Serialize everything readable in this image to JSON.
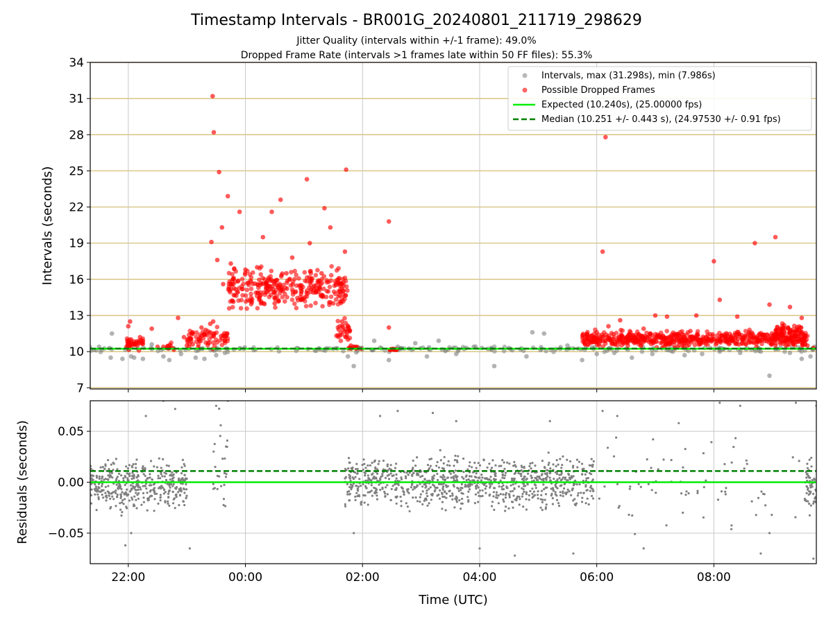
{
  "figure": {
    "title": "Timestamp Intervals - BR001G_20240801_211719_298629",
    "subtitle_1": "Jitter Quality (intervals within +/-1 frame): 49.0%",
    "subtitle_2": "Dropped Frame Rate (intervals >1 frames late within 50 FF files): 55.3%"
  },
  "chart_data": [
    {
      "type": "scatter",
      "title": "Timestamp Intervals - BR001G_20240801_211719_298629",
      "xlabel": "",
      "ylabel": "Intervals (seconds)",
      "x_unit": "hours since 00:00 UTC (negative = previous day)",
      "xlim": [
        -2.65,
        9.75
      ],
      "ylim": [
        6.9,
        34
      ],
      "yticks": [
        7,
        10,
        13,
        16,
        19,
        22,
        25,
        28,
        31,
        34
      ],
      "yticklabels": [
        "7",
        "10",
        "13",
        "16",
        "19",
        "22",
        "25",
        "28",
        "31",
        "34"
      ],
      "xticks": [
        -2,
        0,
        2,
        4,
        6,
        8
      ],
      "xticklabels": [
        "22:00",
        "00:00",
        "02:00",
        "04:00",
        "06:00",
        "08:00"
      ],
      "grid": true,
      "legend_position": "top-right",
      "legend": [
        "Intervals, max (31.298s), min (7.986s)",
        "Possible Dropped Frames",
        "Expected (10.240s), (25.00000 fps)",
        "Median (10.251 +/- 0.443 s), (24.97530 +/- 0.91 fps)"
      ],
      "expected_interval": 10.24,
      "median_interval": 10.251,
      "max_interval": 31.298,
      "min_interval": 7.986,
      "series": [
        {
          "name": "Intervals, max (31.298s), min (7.986s)",
          "color": "#808080",
          "points": [
            [
              -2.7,
              10.3
            ],
            [
              -2.66,
              10.4
            ],
            [
              -2.5,
              10.4
            ],
            [
              -2.32,
              10.3
            ],
            [
              -2.28,
              11.5
            ],
            [
              -2.3,
              9.5
            ],
            [
              -2.1,
              9.4
            ],
            [
              -1.9,
              9.5
            ],
            [
              -1.95,
              9.6
            ],
            [
              -1.75,
              9.4
            ],
            [
              -1.6,
              10.6
            ],
            [
              -1.4,
              9.6
            ],
            [
              -1.3,
              9.3
            ],
            [
              -1.1,
              9.8
            ],
            [
              -0.85,
              9.5
            ],
            [
              -0.7,
              9.4
            ],
            [
              -0.5,
              9.7
            ],
            [
              -0.35,
              9.9
            ],
            [
              1.75,
              9.6
            ],
            [
              1.85,
              8.8
            ],
            [
              1.95,
              10.3
            ],
            [
              2.2,
              10.9
            ],
            [
              2.45,
              9.3
            ],
            [
              2.6,
              10.4
            ],
            [
              2.9,
              10.7
            ],
            [
              3.1,
              9.6
            ],
            [
              3.3,
              10.9
            ],
            [
              3.6,
              9.8
            ],
            [
              3.9,
              10.4
            ],
            [
              4.2,
              10.3
            ],
            [
              4.25,
              8.8
            ],
            [
              4.5,
              10.3
            ],
            [
              4.8,
              9.6
            ],
            [
              4.9,
              11.6
            ],
            [
              5.1,
              11.5
            ],
            [
              5.3,
              10.2
            ],
            [
              5.5,
              10.5
            ],
            [
              5.75,
              9.3
            ],
            [
              6.0,
              9.8
            ],
            [
              6.3,
              9.9
            ],
            [
              6.6,
              9.5
            ],
            [
              6.95,
              9.8
            ],
            [
              7.3,
              10.0
            ],
            [
              7.5,
              9.7
            ],
            [
              7.8,
              9.8
            ],
            [
              8.1,
              10.0
            ],
            [
              8.45,
              9.9
            ],
            [
              8.8,
              10.0
            ],
            [
              8.95,
              8.0
            ],
            [
              9.1,
              10.2
            ],
            [
              9.3,
              9.9
            ],
            [
              9.5,
              9.4
            ],
            [
              9.65,
              9.6
            ],
            [
              9.72,
              10.4
            ]
          ]
        },
        {
          "name": "Possible Dropped Frames",
          "color": "#ff0000",
          "note": "representative visible points",
          "points": [
            [
              -2.0,
              12.1
            ],
            [
              -1.97,
              12.5
            ],
            [
              -1.95,
              11.0
            ],
            [
              -1.9,
              10.6
            ],
            [
              -1.8,
              11.2
            ],
            [
              -1.6,
              11.9
            ],
            [
              -1.5,
              10.4
            ],
            [
              -1.4,
              10.4
            ],
            [
              -1.3,
              10.3
            ],
            [
              -1.15,
              12.8
            ],
            [
              -1.05,
              11.2
            ],
            [
              -1.0,
              10.5
            ],
            [
              -0.92,
              11.5
            ],
            [
              -0.9,
              10.6
            ],
            [
              -0.75,
              12.0
            ],
            [
              -0.7,
              11.4
            ],
            [
              -0.68,
              11.8
            ],
            [
              -0.6,
              12.3
            ],
            [
              -0.55,
              12.5
            ],
            [
              -0.58,
              19.1
            ],
            [
              -0.56,
              31.2
            ],
            [
              -0.54,
              28.2
            ],
            [
              -0.45,
              24.9
            ],
            [
              -0.48,
              17.6
            ],
            [
              -0.4,
              20.3
            ],
            [
              -0.38,
              15.6
            ],
            [
              -0.3,
              22.9
            ],
            [
              -0.25,
              17.3
            ],
            [
              -0.1,
              21.6
            ],
            [
              -0.35,
              10.9
            ],
            [
              0.0,
              16.8
            ],
            [
              0.1,
              14.2
            ],
            [
              0.2,
              17.0
            ],
            [
              0.3,
              19.5
            ],
            [
              0.35,
              15.3
            ],
            [
              0.45,
              21.6
            ],
            [
              0.5,
              14.0
            ],
            [
              0.6,
              22.6
            ],
            [
              0.7,
              16.5
            ],
            [
              0.8,
              17.8
            ],
            [
              0.95,
              14.3
            ],
            [
              1.05,
              24.3
            ],
            [
              1.1,
              19.0
            ],
            [
              1.2,
              15.5
            ],
            [
              1.3,
              16.5
            ],
            [
              1.35,
              21.9
            ],
            [
              1.45,
              20.3
            ],
            [
              1.5,
              14.0
            ],
            [
              1.6,
              16.1
            ],
            [
              1.65,
              12.5
            ],
            [
              1.7,
              18.3
            ],
            [
              1.72,
              25.1
            ],
            [
              1.75,
              11.0
            ],
            [
              1.8,
              10.5
            ],
            [
              2.45,
              20.8
            ],
            [
              2.45,
              12.0
            ],
            [
              2.5,
              10.2
            ],
            [
              5.8,
              10.6
            ],
            [
              6.0,
              11.6
            ],
            [
              6.1,
              18.3
            ],
            [
              6.15,
              27.8
            ],
            [
              6.2,
              12.1
            ],
            [
              6.4,
              12.6
            ],
            [
              6.6,
              11.1
            ],
            [
              6.8,
              11.9
            ],
            [
              7.0,
              13.0
            ],
            [
              7.1,
              11.2
            ],
            [
              7.2,
              12.9
            ],
            [
              7.4,
              11.4
            ],
            [
              7.6,
              11.7
            ],
            [
              7.7,
              13.0
            ],
            [
              7.9,
              11.0
            ],
            [
              8.0,
              17.5
            ],
            [
              8.1,
              14.3
            ],
            [
              8.3,
              11.1
            ],
            [
              8.4,
              12.9
            ],
            [
              8.6,
              11.6
            ],
            [
              8.7,
              19.0
            ],
            [
              8.85,
              11.4
            ],
            [
              8.95,
              13.9
            ],
            [
              9.05,
              19.5
            ],
            [
              9.2,
              12.2
            ],
            [
              9.3,
              13.7
            ],
            [
              9.4,
              11.0
            ],
            [
              9.5,
              12.8
            ],
            [
              9.6,
              10.5
            ],
            [
              9.7,
              10.3
            ]
          ]
        },
        {
          "name": "Expected (10.240s), (25.00000 fps)",
          "color": "#00ee00",
          "style": "solid",
          "y": 10.24
        },
        {
          "name": "Median (10.251 +/- 0.443 s), (24.97530 +/- 0.91 fps)",
          "color": "#008000",
          "style": "dashed",
          "y": 10.251
        }
      ],
      "clusters": [
        {
          "color": "#808080",
          "x_range": [
            -2.7,
            9.75
          ],
          "y_range": [
            9.9,
            10.5
          ],
          "count": 200
        },
        {
          "color": "#ff0000",
          "x_range": [
            -2.05,
            -1.75
          ],
          "y_range": [
            10.0,
            11.3
          ],
          "count": 40
        },
        {
          "color": "#ff0000",
          "x_range": [
            -1.35,
            -1.2
          ],
          "y_range": [
            10.0,
            10.8
          ],
          "count": 12
        },
        {
          "color": "#ff0000",
          "x_range": [
            -1.0,
            -0.3
          ],
          "y_range": [
            10.0,
            12.2
          ],
          "count": 70
        },
        {
          "color": "#ff0000",
          "x_range": [
            -0.3,
            1.75
          ],
          "y_range": [
            13.0,
            17.5
          ],
          "count": 320
        },
        {
          "color": "#ff0000",
          "x_range": [
            1.55,
            1.8
          ],
          "y_range": [
            10.4,
            13.0
          ],
          "count": 30
        },
        {
          "color": "#ff0000",
          "x_range": [
            1.75,
            2.0
          ],
          "y_range": [
            10.1,
            10.5
          ],
          "count": 14
        },
        {
          "color": "#ff0000",
          "x_range": [
            2.45,
            2.6
          ],
          "y_range": [
            10.1,
            10.3
          ],
          "count": 10
        },
        {
          "color": "#ff0000",
          "x_range": [
            5.75,
            9.6
          ],
          "y_range": [
            10.2,
            11.9
          ],
          "count": 620
        },
        {
          "color": "#ff0000",
          "x_range": [
            9.05,
            9.5
          ],
          "y_range": [
            10.8,
            12.5
          ],
          "count": 60
        }
      ]
    },
    {
      "type": "scatter",
      "xlabel": "Time (UTC)",
      "ylabel": "Residuals (seconds)",
      "xlim": [
        -2.65,
        9.75
      ],
      "ylim": [
        -0.08,
        0.08
      ],
      "yticks": [
        0.05,
        0.0,
        -0.05
      ],
      "yticklabels": [
        "0.05",
        "0.00",
        "−0.05"
      ],
      "xticks": [
        -2,
        0,
        2,
        4,
        6,
        8
      ],
      "xticklabels": [
        "22:00",
        "00:00",
        "02:00",
        "04:00",
        "06:00",
        "08:00"
      ],
      "grid": true,
      "series": [
        {
          "name": "",
          "color": "#00ee00",
          "style": "solid",
          "y": 0.0
        },
        {
          "name": "",
          "color": "#008000",
          "style": "dashed",
          "y": 0.011
        }
      ],
      "clusters": [
        {
          "color": "#808080",
          "x_range": [
            -2.7,
            -1.0
          ],
          "y_range": [
            -0.035,
            0.03
          ],
          "count": 420
        },
        {
          "color": "#808080",
          "x_range": [
            -0.55,
            -0.3
          ],
          "y_range": [
            -0.05,
            0.08
          ],
          "count": 25
        },
        {
          "color": "#808080",
          "x_range": [
            1.7,
            5.95
          ],
          "y_range": [
            -0.035,
            0.035
          ],
          "count": 900
        },
        {
          "color": "#808080",
          "x_range": [
            5.95,
            9.5
          ],
          "y_range": [
            -0.08,
            0.08
          ],
          "count": 70
        },
        {
          "color": "#808080",
          "x_range": [
            9.55,
            9.75
          ],
          "y_range": [
            -0.04,
            0.03
          ],
          "count": 60
        }
      ],
      "points": [
        [
          -2.05,
          -0.062
        ],
        [
          -1.95,
          -0.05
        ],
        [
          -1.7,
          0.065
        ],
        [
          -1.4,
          0.08
        ],
        [
          -1.2,
          0.072
        ],
        [
          -0.95,
          -0.065
        ],
        [
          -0.5,
          0.075
        ],
        [
          -0.3,
          0.08
        ],
        [
          1.85,
          -0.05
        ],
        [
          2.3,
          0.065
        ],
        [
          2.6,
          0.07
        ],
        [
          3.2,
          0.068
        ],
        [
          3.6,
          0.06
        ],
        [
          4.0,
          -0.065
        ],
        [
          4.6,
          -0.072
        ],
        [
          5.2,
          0.06
        ],
        [
          5.6,
          -0.07
        ],
        [
          6.1,
          0.07
        ],
        [
          6.35,
          0.065
        ],
        [
          6.8,
          -0.065
        ],
        [
          7.4,
          0.058
        ],
        [
          8.1,
          0.078
        ],
        [
          8.45,
          0.075
        ],
        [
          8.8,
          -0.07
        ],
        [
          8.95,
          -0.05
        ],
        [
          9.4,
          0.078
        ],
        [
          9.7,
          -0.075
        ],
        [
          9.75,
          0.075
        ]
      ]
    }
  ]
}
